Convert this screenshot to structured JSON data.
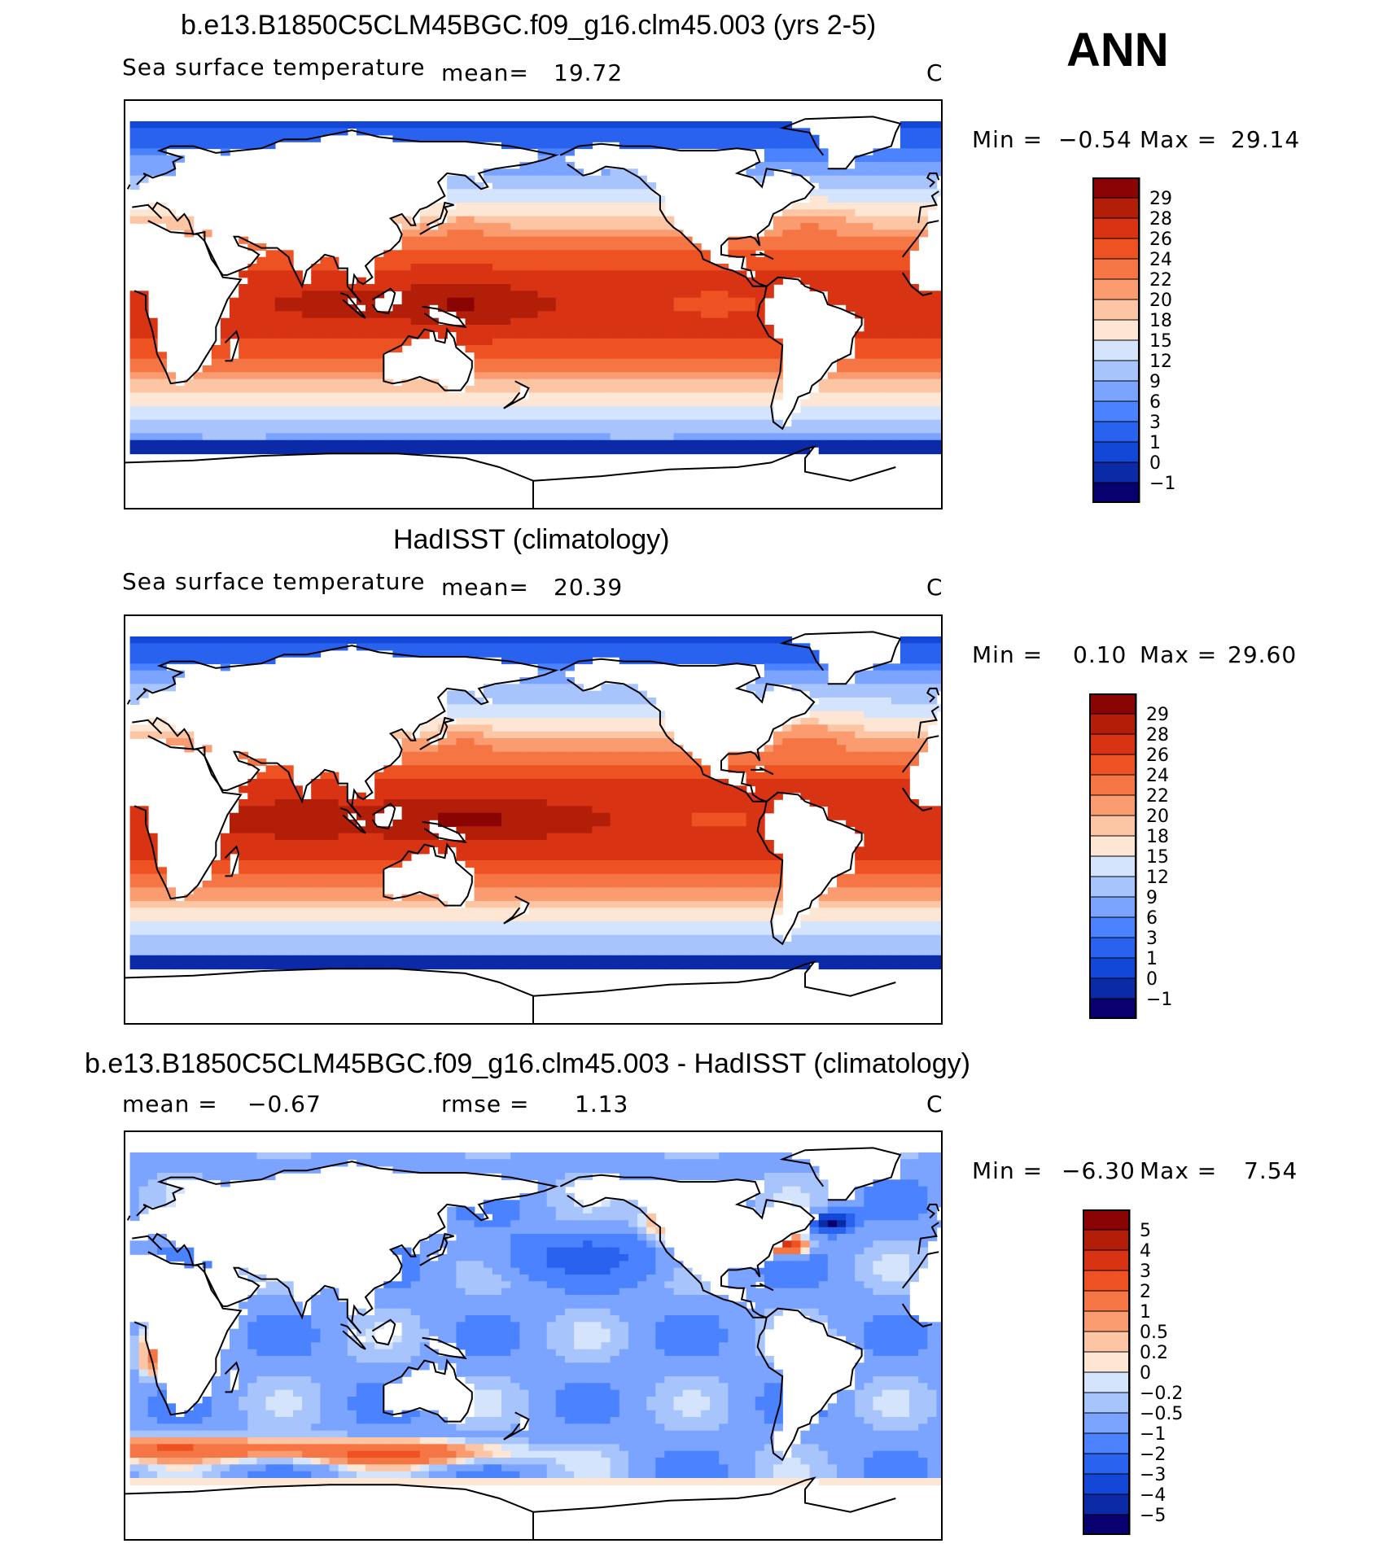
{
  "season": "ANN",
  "units": "C",
  "colors": {
    "sst_palette": [
      "#08006e",
      "#0a2aa8",
      "#1247d8",
      "#2a62f0",
      "#4a82ff",
      "#7aa4ff",
      "#a8c4fc",
      "#d4e4fc",
      "#fde6d4",
      "#fcc6a4",
      "#fa9c70",
      "#f57644",
      "#ef5222",
      "#d83414",
      "#b31e08",
      "#8a0404"
    ],
    "diff_palette": [
      "#08006e",
      "#0a2aa8",
      "#1247d8",
      "#2a62f0",
      "#4a82ff",
      "#7aa4ff",
      "#a8c4fc",
      "#d4e4fc",
      "#fde6d4",
      "#fcc6a4",
      "#fa9c70",
      "#f57644",
      "#ef5222",
      "#d83414",
      "#b31e08",
      "#8a0404"
    ],
    "land": "#ffffff",
    "coastline": "#000000"
  },
  "panels": [
    {
      "title": "b.e13.B1850C5CLM45BGC.f09_g16.clm45.003 (yrs 2-5)",
      "left_label": "Sea surface temperature",
      "stat_label": "mean=",
      "stat_value": "19.72",
      "units": "C",
      "min_label": "Min =",
      "min_value": "−0.54",
      "max_label": "Max =",
      "max_value": "29.14",
      "ticks": [
        "29",
        "28",
        "26",
        "24",
        "22",
        "20",
        "18",
        "15",
        "12",
        "9",
        "6",
        "3",
        "1",
        "0",
        "−1"
      ]
    },
    {
      "title": "HadISST (climatology)",
      "left_label": "Sea surface temperature",
      "stat_label": "mean=",
      "stat_value": "20.39",
      "units": "C",
      "min_label": "Min =",
      "min_value": "0.10",
      "max_label": "Max =",
      "max_value": "29.60",
      "ticks": [
        "29",
        "28",
        "26",
        "24",
        "22",
        "20",
        "18",
        "15",
        "12",
        "9",
        "6",
        "3",
        "1",
        "0",
        "−1"
      ]
    },
    {
      "title": "b.e13.B1850C5CLM45BGC.f09_g16.clm45.003 - HadISST (climatology)",
      "mean_label": "mean =",
      "mean_value": "−0.67",
      "rmse_label": "rmse =",
      "rmse_value": "1.13",
      "units": "C",
      "min_label": "Min =",
      "min_value": "−6.30",
      "max_label": "Max =",
      "max_value": "7.54",
      "ticks": [
        "5",
        "4",
        "3",
        "2",
        "1",
        "0.5",
        "0.2",
        "0",
        "−0.2",
        "−0.5",
        "−1",
        "−2",
        "−3",
        "−4",
        "−5"
      ]
    }
  ],
  "chart_data": [
    {
      "type": "heatmap",
      "title": "b.e13.B1850C5CLM45BGC.f09_g16.clm45.003 (yrs 2-5)",
      "variable": "Sea surface temperature",
      "season": "ANN",
      "units": "C",
      "mean": 19.72,
      "min": -0.54,
      "max": 29.14,
      "colorbar_levels": [
        -1,
        0,
        1,
        3,
        6,
        9,
        12,
        15,
        18,
        20,
        22,
        24,
        26,
        28,
        29
      ]
    },
    {
      "type": "heatmap",
      "title": "HadISST (climatology)",
      "variable": "Sea surface temperature",
      "season": "ANN",
      "units": "C",
      "mean": 20.39,
      "min": 0.1,
      "max": 29.6,
      "colorbar_levels": [
        -1,
        0,
        1,
        3,
        6,
        9,
        12,
        15,
        18,
        20,
        22,
        24,
        26,
        28,
        29
      ]
    },
    {
      "type": "heatmap",
      "title": "b.e13.B1850C5CLM45BGC.f09_g16.clm45.003 - HadISST (climatology)",
      "season": "ANN",
      "units": "C",
      "mean": -0.67,
      "rmse": 1.13,
      "min": -6.3,
      "max": 7.54,
      "colorbar_levels": [
        -5,
        -4,
        -3,
        -2,
        -1,
        -0.5,
        -0.2,
        0,
        0.2,
        0.5,
        1,
        2,
        3,
        4,
        5
      ]
    }
  ]
}
